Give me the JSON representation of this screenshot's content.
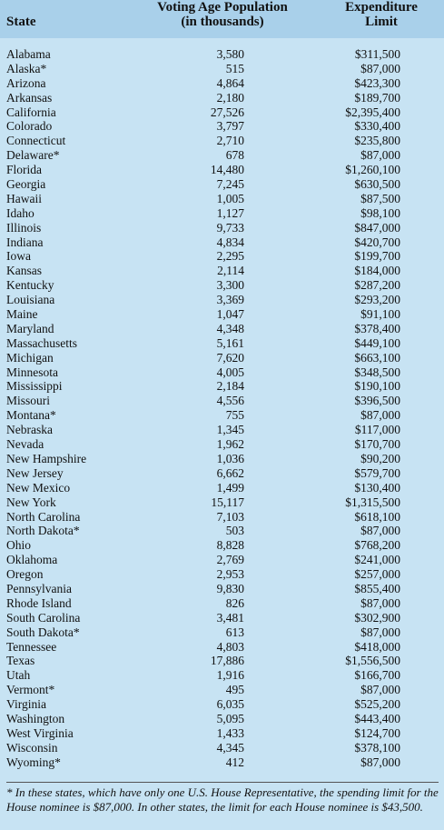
{
  "header": {
    "state": "State",
    "population_line1": "Voting Age Population",
    "population_line2": "(in thousands)",
    "expenditure_line1": "Expenditure",
    "expenditure_line2": "Limit"
  },
  "rows": [
    {
      "state": "Alabama",
      "population": "3,580",
      "limit": "$311,500"
    },
    {
      "state": "Alaska*",
      "population": "515",
      "limit": "$87,000"
    },
    {
      "state": "Arizona",
      "population": "4,864",
      "limit": "$423,300"
    },
    {
      "state": "Arkansas",
      "population": "2,180",
      "limit": "$189,700"
    },
    {
      "state": "California",
      "population": "27,526",
      "limit": "$2,395,400"
    },
    {
      "state": "Colorado",
      "population": "3,797",
      "limit": "$330,400"
    },
    {
      "state": "Connecticut",
      "population": "2,710",
      "limit": "$235,800"
    },
    {
      "state": "Delaware*",
      "population": "678",
      "limit": "$87,000"
    },
    {
      "state": "Florida",
      "population": "14,480",
      "limit": "$1,260,100"
    },
    {
      "state": "Georgia",
      "population": "7,245",
      "limit": "$630,500"
    },
    {
      "state": "Hawaii",
      "population": "1,005",
      "limit": "$87,500"
    },
    {
      "state": "Idaho",
      "population": "1,127",
      "limit": "$98,100"
    },
    {
      "state": "Illinois",
      "population": "9,733",
      "limit": "$847,000"
    },
    {
      "state": "Indiana",
      "population": "4,834",
      "limit": "$420,700"
    },
    {
      "state": "Iowa",
      "population": "2,295",
      "limit": "$199,700"
    },
    {
      "state": "Kansas",
      "population": "2,114",
      "limit": "$184,000"
    },
    {
      "state": "Kentucky",
      "population": "3,300",
      "limit": "$287,200"
    },
    {
      "state": "Louisiana",
      "population": "3,369",
      "limit": "$293,200"
    },
    {
      "state": "Maine",
      "population": "1,047",
      "limit": "$91,100"
    },
    {
      "state": "Maryland",
      "population": "4,348",
      "limit": "$378,400"
    },
    {
      "state": "Massachusetts",
      "population": "5,161",
      "limit": "$449,100"
    },
    {
      "state": "Michigan",
      "population": "7,620",
      "limit": "$663,100"
    },
    {
      "state": "Minnesota",
      "population": "4,005",
      "limit": "$348,500"
    },
    {
      "state": "Mississippi",
      "population": "2,184",
      "limit": "$190,100"
    },
    {
      "state": "Missouri",
      "population": "4,556",
      "limit": "$396,500"
    },
    {
      "state": "Montana*",
      "population": "755",
      "limit": "$87,000"
    },
    {
      "state": "Nebraska",
      "population": "1,345",
      "limit": "$117,000"
    },
    {
      "state": "Nevada",
      "population": "1,962",
      "limit": "$170,700"
    },
    {
      "state": "New Hampshire",
      "population": "1,036",
      "limit": "$90,200"
    },
    {
      "state": "New Jersey",
      "population": "6,662",
      "limit": "$579,700"
    },
    {
      "state": "New Mexico",
      "population": "1,499",
      "limit": "$130,400"
    },
    {
      "state": "New York",
      "population": "15,117",
      "limit": "$1,315,500"
    },
    {
      "state": "North Carolina",
      "population": "7,103",
      "limit": "$618,100"
    },
    {
      "state": "North Dakota*",
      "population": "503",
      "limit": "$87,000"
    },
    {
      "state": "Ohio",
      "population": "8,828",
      "limit": "$768,200"
    },
    {
      "state": "Oklahoma",
      "population": "2,769",
      "limit": "$241,000"
    },
    {
      "state": "Oregon",
      "population": "2,953",
      "limit": "$257,000"
    },
    {
      "state": "Pennsylvania",
      "population": "9,830",
      "limit": "$855,400"
    },
    {
      "state": "Rhode Island",
      "population": "826",
      "limit": "$87,000"
    },
    {
      "state": "South Carolina",
      "population": "3,481",
      "limit": "$302,900"
    },
    {
      "state": "South Dakota*",
      "population": "613",
      "limit": "$87,000"
    },
    {
      "state": "Tennessee",
      "population": "4,803",
      "limit": "$418,000"
    },
    {
      "state": "Texas",
      "population": "17,886",
      "limit": "$1,556,500"
    },
    {
      "state": "Utah",
      "population": "1,916",
      "limit": "$166,700"
    },
    {
      "state": "Vermont*",
      "population": "495",
      "limit": "$87,000"
    },
    {
      "state": "Virginia",
      "population": "6,035",
      "limit": "$525,200"
    },
    {
      "state": "Washington",
      "population": "5,095",
      "limit": "$443,400"
    },
    {
      "state": "West Virginia",
      "population": "1,433",
      "limit": "$124,700"
    },
    {
      "state": "Wisconsin",
      "population": "4,345",
      "limit": "$378,100"
    },
    {
      "state": "Wyoming*",
      "population": "412",
      "limit": "$87,000"
    }
  ],
  "footnote": "* In these states, which have only one U.S. House Representative, the spending limit for the House nominee is $87,000. In other states, the limit for each House nominee is $43,500."
}
